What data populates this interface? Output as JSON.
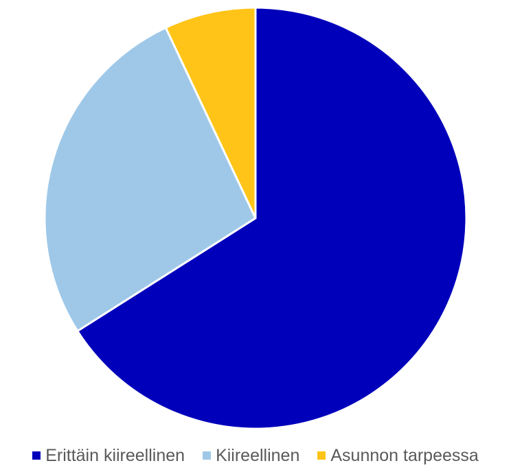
{
  "chart_data": {
    "type": "pie",
    "categories": [
      "Erittäin kiireellinen",
      "Kiireellinen",
      "Asunnon tarpeessa"
    ],
    "values": [
      66,
      27,
      7
    ],
    "colors": [
      "#0000BB",
      "#9FC8E8",
      "#FFC417"
    ],
    "legend_position": "bottom",
    "start": "top, clockwise"
  }
}
